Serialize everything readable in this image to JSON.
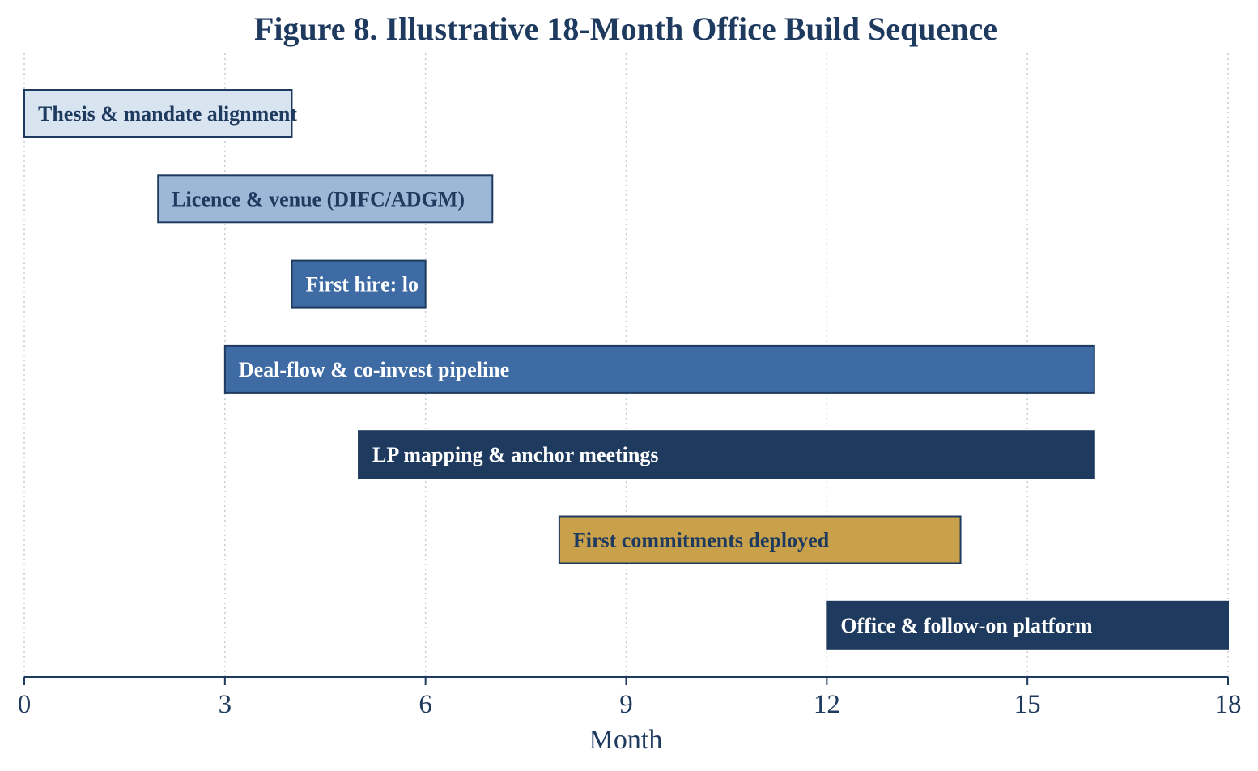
{
  "chart_data": {
    "type": "gantt",
    "title": "Figure 8. Illustrative 18-Month Office Build Sequence",
    "xlabel": "Month",
    "xlim": [
      0,
      18
    ],
    "xticks": [
      0,
      3,
      6,
      9,
      12,
      15,
      18
    ],
    "grid": "vertical dotted",
    "tasks": [
      {
        "label": "Thesis & mandate alignment",
        "start": 0,
        "end": 4,
        "color": "#d9e4f1",
        "text_color": "#1f3a5f"
      },
      {
        "label": "Licence & venue (DIFC/ADGM)",
        "start": 2,
        "end": 7,
        "color": "#9db8d7",
        "text_color": "#1f3a5f"
      },
      {
        "label": "First hire: lo",
        "start": 4,
        "end": 6,
        "color": "#3e6ba3",
        "text_color": "#ffffff"
      },
      {
        "label": "Deal-flow & co-invest pipeline",
        "start": 3,
        "end": 16,
        "color": "#3e6ba3",
        "text_color": "#ffffff"
      },
      {
        "label": "LP mapping & anchor meetings",
        "start": 5,
        "end": 16,
        "color": "#1f3a5f",
        "text_color": "#ffffff"
      },
      {
        "label": "First commitments deployed",
        "start": 8,
        "end": 14,
        "color": "#c9a14a",
        "text_color": "#1f3a5f"
      },
      {
        "label": "Office & follow-on platform",
        "start": 12,
        "end": 18,
        "color": "#1f3a5f",
        "text_color": "#ffffff"
      }
    ]
  },
  "colors": {
    "axis": "#1f3a5f",
    "grid": "#c8ccd4",
    "bar_edge": "#1f3a5f"
  }
}
